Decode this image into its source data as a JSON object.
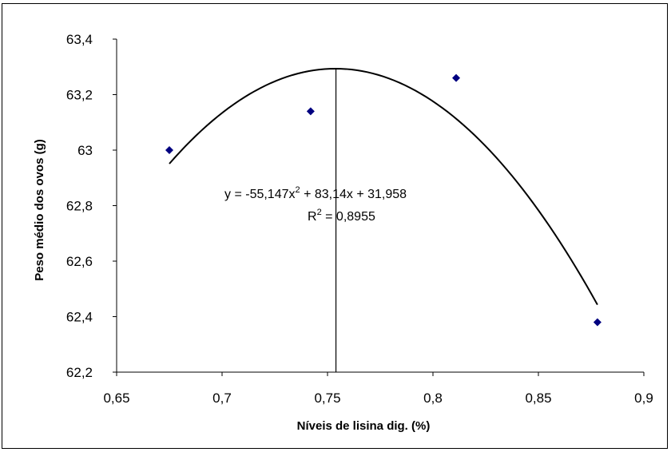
{
  "chart_data": {
    "type": "scatter",
    "xlabel": "Níveis de lisina dig. (%)",
    "ylabel": "Peso médio dos ovos (g)",
    "xlim": [
      0.65,
      0.9
    ],
    "ylim": [
      62.2,
      63.4
    ],
    "x_ticks": [
      "0,65",
      "0,7",
      "0,75",
      "0,8",
      "0,85",
      "0,9"
    ],
    "y_ticks": [
      "62,2",
      "62,4",
      "62,6",
      "62,8",
      "63",
      "63,2",
      "63,4"
    ],
    "grid": false,
    "points": [
      {
        "x": 0.675,
        "y": 63.0
      },
      {
        "x": 0.742,
        "y": 63.14
      },
      {
        "x": 0.811,
        "y": 63.26
      },
      {
        "x": 0.878,
        "y": 62.38
      }
    ],
    "marker_color": "#000080",
    "trendline": {
      "type": "polynomial",
      "equation_prefix": "y = -55,147x",
      "equation_suffix": " + 83,14x + 31,958",
      "r2_value": " = 0,8955",
      "a": -55.147,
      "b": 83.14,
      "c": 31.958,
      "x_range": [
        0.675,
        0.878
      ]
    },
    "vertical_line_x": 0.754
  }
}
